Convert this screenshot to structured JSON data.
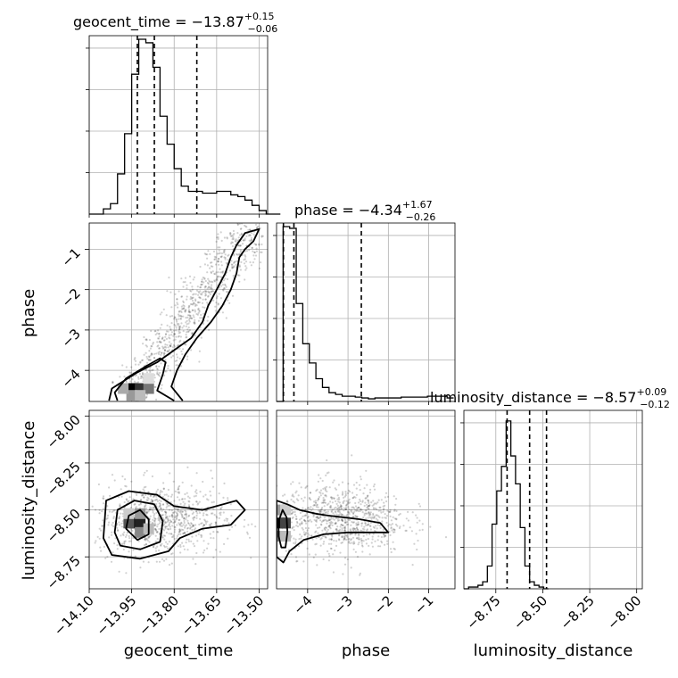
{
  "chart_data": {
    "type": "corner",
    "parameters": [
      "geocent_time",
      "phase",
      "luminosity_distance"
    ],
    "titles": [
      {
        "param": "geocent_time",
        "prefix": "geocent_time = ",
        "value": "−13.87",
        "plus": "+0.15",
        "minus": "−0.06"
      },
      {
        "param": "phase",
        "prefix": "phase = ",
        "value": "−4.34",
        "plus": "+1.67",
        "minus": "−0.26"
      },
      {
        "param": "luminosity_distance",
        "prefix": "luminosity_distance = ",
        "value": "−8.57",
        "plus": "+0.09",
        "minus": "−0.12"
      }
    ],
    "ranges": {
      "geocent_time": [
        -14.1,
        -13.47
      ],
      "phase": [
        -4.77,
        -0.35
      ],
      "luminosity_distance": [
        -8.92,
        -7.97
      ]
    },
    "ticks": {
      "geocent_time": {
        "values": [
          -14.1,
          -13.95,
          -13.8,
          -13.65,
          -13.5
        ],
        "labels": [
          "−14.10",
          "−13.95",
          "−13.80",
          "−13.65",
          "−13.50"
        ]
      },
      "phase": {
        "values": [
          -4,
          -3,
          -2,
          -1
        ],
        "labels": [
          "−4",
          "−3",
          "−2",
          "−1"
        ]
      },
      "luminosity_distance": {
        "values": [
          -8.75,
          -8.5,
          -8.25,
          -8.0
        ],
        "labels": [
          "−8.75",
          "−8.50",
          "−8.25",
          "−8.00"
        ]
      }
    },
    "quantiles": {
      "geocent_time": [
        -13.93,
        -13.87,
        -13.72
      ],
      "phase": [
        -4.6,
        -4.34,
        -2.67
      ],
      "luminosity_distance": [
        -8.69,
        -8.57,
        -8.48
      ]
    },
    "histograms": {
      "geocent_time": {
        "edges_start": -14.1,
        "bin_width": 0.025,
        "counts": [
          0,
          0,
          0.03,
          0.06,
          0.23,
          0.46,
          0.8,
          1.0,
          0.98,
          0.84,
          0.56,
          0.4,
          0.26,
          0.16,
          0.13,
          0.13,
          0.12,
          0.12,
          0.13,
          0.13,
          0.11,
          0.1,
          0.08,
          0.05,
          0.02,
          0.0,
          0.0
        ]
      },
      "phase": {
        "edges_start": -4.77,
        "bin_width": 0.1625,
        "counts": [
          0,
          1.0,
          0.99,
          0.56,
          0.33,
          0.22,
          0.13,
          0.08,
          0.05,
          0.04,
          0.03,
          0.03,
          0.025,
          0.02,
          0.015,
          0.02,
          0.02,
          0.02,
          0.02,
          0.025,
          0.025,
          0.025,
          0.025,
          0.03,
          0.03,
          0.03,
          0.02
        ]
      },
      "luminosity_distance": {
        "edges_start": -8.92,
        "bin_width": 0.025,
        "counts": [
          0,
          0.01,
          0.01,
          0.02,
          0.04,
          0.13,
          0.37,
          0.56,
          0.7,
          0.96,
          0.76,
          0.6,
          0.35,
          0.13,
          0.04,
          0.02,
          0.01,
          0.0
        ]
      }
    },
    "contours_2d": {
      "phase_vs_geocent_time": [
        [
          [
            -14.0,
            -4.75
          ],
          [
            -14.01,
            -4.55
          ],
          [
            -13.97,
            -4.2
          ],
          [
            -13.9,
            -3.9
          ],
          [
            -13.85,
            -3.7
          ],
          [
            -13.83,
            -3.8
          ],
          [
            -13.84,
            -4.1
          ],
          [
            -13.86,
            -4.5
          ],
          [
            -13.8,
            -4.75
          ]
        ],
        [
          [
            -14.03,
            -4.75
          ],
          [
            -14.02,
            -4.45
          ],
          [
            -13.93,
            -4.05
          ],
          [
            -13.86,
            -3.8
          ],
          [
            -13.8,
            -3.5
          ],
          [
            -13.74,
            -3.2
          ],
          [
            -13.7,
            -2.8
          ],
          [
            -13.68,
            -2.4
          ],
          [
            -13.65,
            -2.0
          ],
          [
            -13.62,
            -1.6
          ],
          [
            -13.6,
            -1.2
          ],
          [
            -13.58,
            -0.9
          ],
          [
            -13.55,
            -0.6
          ],
          [
            -13.5,
            -0.5
          ],
          [
            -13.52,
            -0.8
          ],
          [
            -13.55,
            -1.0
          ],
          [
            -13.57,
            -1.2
          ],
          [
            -13.58,
            -1.6
          ],
          [
            -13.6,
            -2.0
          ],
          [
            -13.63,
            -2.4
          ],
          [
            -13.67,
            -2.8
          ],
          [
            -13.72,
            -3.2
          ],
          [
            -13.76,
            -3.6
          ],
          [
            -13.79,
            -4.0
          ],
          [
            -13.81,
            -4.4
          ],
          [
            -13.77,
            -4.75
          ]
        ]
      ],
      "luminosity_distance_vs_geocent_time": [
        [
          [
            -13.97,
            -8.6
          ],
          [
            -13.96,
            -8.53
          ],
          [
            -13.92,
            -8.5
          ],
          [
            -13.89,
            -8.55
          ],
          [
            -13.89,
            -8.63
          ],
          [
            -13.93,
            -8.66
          ],
          [
            -13.97,
            -8.6
          ]
        ],
        [
          [
            -14.01,
            -8.62
          ],
          [
            -14.0,
            -8.5
          ],
          [
            -13.94,
            -8.45
          ],
          [
            -13.87,
            -8.47
          ],
          [
            -13.84,
            -8.56
          ],
          [
            -13.85,
            -8.67
          ],
          [
            -13.92,
            -8.71
          ],
          [
            -13.99,
            -8.69
          ],
          [
            -14.01,
            -8.62
          ]
        ],
        [
          [
            -14.05,
            -8.65
          ],
          [
            -14.04,
            -8.45
          ],
          [
            -13.96,
            -8.4
          ],
          [
            -13.86,
            -8.42
          ],
          [
            -13.8,
            -8.48
          ],
          [
            -13.7,
            -8.5
          ],
          [
            -13.58,
            -8.45
          ],
          [
            -13.55,
            -8.5
          ],
          [
            -13.6,
            -8.58
          ],
          [
            -13.7,
            -8.6
          ],
          [
            -13.78,
            -8.65
          ],
          [
            -13.82,
            -8.72
          ],
          [
            -13.92,
            -8.76
          ],
          [
            -14.02,
            -8.74
          ],
          [
            -14.05,
            -8.65
          ]
        ]
      ],
      "luminosity_distance_vs_phase": [
        [
          [
            -4.72,
            -8.56
          ],
          [
            -4.62,
            -8.5
          ],
          [
            -4.52,
            -8.54
          ],
          [
            -4.5,
            -8.62
          ],
          [
            -4.55,
            -8.7
          ],
          [
            -4.65,
            -8.7
          ],
          [
            -4.72,
            -8.64
          ]
        ],
        [
          [
            -4.77,
            -8.45
          ],
          [
            -4.5,
            -8.47
          ],
          [
            -4.2,
            -8.5
          ],
          [
            -3.8,
            -8.52
          ],
          [
            -3.5,
            -8.53
          ],
          [
            -2.7,
            -8.55
          ],
          [
            -2.2,
            -8.57
          ],
          [
            -2.0,
            -8.62
          ],
          [
            -2.4,
            -8.62
          ],
          [
            -3.0,
            -8.62
          ],
          [
            -3.6,
            -8.63
          ],
          [
            -4.1,
            -8.66
          ],
          [
            -4.45,
            -8.72
          ],
          [
            -4.6,
            -8.78
          ],
          [
            -4.77,
            -8.75
          ]
        ]
      ]
    },
    "scatter": {
      "phase_vs_geocent_time": {
        "center": [
          -13.82,
          -3.7
        ],
        "count": 900
      },
      "luminosity_distance_vs_geocent_time": {
        "center": [
          -13.85,
          -8.55
        ],
        "count": 900
      },
      "luminosity_distance_vs_phase": {
        "center": [
          -3.2,
          -8.55
        ],
        "count": 900
      }
    }
  }
}
